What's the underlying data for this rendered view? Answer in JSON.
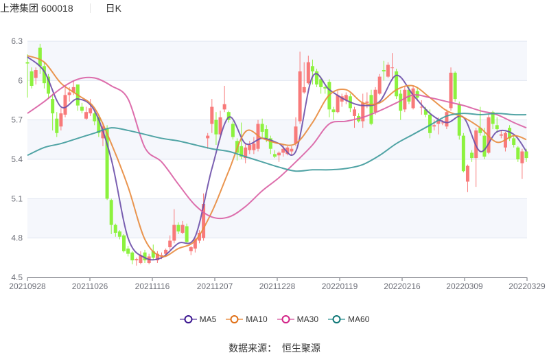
{
  "header": {
    "stock_name": "上港集团",
    "stock_code": "600018",
    "period": "日K"
  },
  "source": {
    "label": "数据来源：",
    "value": "恒生聚源"
  },
  "colors": {
    "up": "#f87a7a",
    "down": "#8cf23e",
    "grid": "#e0e6f1",
    "band": "#f5f7fc",
    "axis": "#6e7079",
    "MA5": "#6b4ea8",
    "MA10": "#e88a3c",
    "MA30": "#d95ea3",
    "MA60": "#3e9a9b",
    "legend_icons": {
      "MA5": "#3b1690",
      "MA10": "#e07018",
      "MA30": "#d22387",
      "MA60": "#0f7777"
    }
  },
  "chart_data": {
    "type": "candlestick",
    "ylim": [
      4.5,
      6.3
    ],
    "y_ticks": [
      "6.3",
      "6",
      "5.7",
      "5.4",
      "5.1",
      "4.8",
      "4.5"
    ],
    "x_ticks": [
      "20210928",
      "20211026",
      "20211116",
      "20211207",
      "20211228",
      "20220119",
      "20220216",
      "20220309",
      "20220329"
    ],
    "grid": true,
    "legend_position": "bottom",
    "legend": [
      "MA5",
      "MA10",
      "MA30",
      "MA60"
    ],
    "candle_order": [
      "open",
      "close",
      "low",
      "high"
    ],
    "candles": [
      [
        6.14,
        6.13,
        5.87,
        6.2
      ],
      [
        6.07,
        5.96,
        5.94,
        6.1
      ],
      [
        6.02,
        6.08,
        5.97,
        6.1
      ],
      [
        6.25,
        6.11,
        6.05,
        6.28
      ],
      [
        6.11,
        5.98,
        5.94,
        6.14
      ],
      [
        6.03,
        5.9,
        5.86,
        6.05
      ],
      [
        5.86,
        5.75,
        5.62,
        5.9
      ],
      [
        5.71,
        5.6,
        5.57,
        5.76
      ],
      [
        5.65,
        5.75,
        5.62,
        5.79
      ],
      [
        5.74,
        5.89,
        5.72,
        5.95
      ],
      [
        5.89,
        5.91,
        5.84,
        5.95
      ],
      [
        5.91,
        5.95,
        5.89,
        6.0
      ],
      [
        5.97,
        5.81,
        5.77,
        5.97
      ],
      [
        5.8,
        5.77,
        5.75,
        5.83
      ],
      [
        5.71,
        5.76,
        5.7,
        5.8
      ],
      [
        5.75,
        5.79,
        5.73,
        5.86
      ],
      [
        5.75,
        5.69,
        5.66,
        5.77
      ],
      [
        5.72,
        5.6,
        5.57,
        5.74
      ],
      [
        5.56,
        5.65,
        5.5,
        5.68
      ],
      [
        5.63,
        5.1,
        5.09,
        5.66
      ],
      [
        5.09,
        4.9,
        4.83,
        5.1
      ],
      [
        4.9,
        4.84,
        4.81,
        4.91
      ],
      [
        4.85,
        4.81,
        4.79,
        4.86
      ],
      [
        4.82,
        4.7,
        4.69,
        4.83
      ],
      [
        4.72,
        4.68,
        4.66,
        4.74
      ],
      [
        4.69,
        4.63,
        4.6,
        4.7
      ],
      [
        4.63,
        4.64,
        4.59,
        4.65
      ],
      [
        4.61,
        4.67,
        4.6,
        4.7
      ],
      [
        4.69,
        4.63,
        4.61,
        4.71
      ],
      [
        4.61,
        4.66,
        4.6,
        4.68
      ],
      [
        4.7,
        4.65,
        4.63,
        4.75
      ],
      [
        4.63,
        4.68,
        4.61,
        4.7
      ],
      [
        4.66,
        4.67,
        4.64,
        4.69
      ],
      [
        4.68,
        4.71,
        4.66,
        4.72
      ],
      [
        4.73,
        4.78,
        4.71,
        4.82
      ],
      [
        4.78,
        4.9,
        4.76,
        5.02
      ],
      [
        4.9,
        4.85,
        4.83,
        4.92
      ],
      [
        4.84,
        4.9,
        4.83,
        4.93
      ],
      [
        4.89,
        4.77,
        4.76,
        4.91
      ],
      [
        4.7,
        4.73,
        4.67,
        4.74
      ],
      [
        4.72,
        4.79,
        4.69,
        4.8
      ],
      [
        4.78,
        4.84,
        4.76,
        4.86
      ],
      [
        4.8,
        5.06,
        4.78,
        5.14
      ],
      [
        5.56,
        5.58,
        5.48,
        5.6
      ],
      [
        5.67,
        5.8,
        5.6,
        5.86
      ],
      [
        5.7,
        5.59,
        5.51,
        5.76
      ],
      [
        5.59,
        5.72,
        5.55,
        5.77
      ],
      [
        5.78,
        5.82,
        5.76,
        5.96
      ],
      [
        5.76,
        5.7,
        5.68,
        5.77
      ],
      [
        5.67,
        5.57,
        5.55,
        5.69
      ],
      [
        5.54,
        5.45,
        5.39,
        5.56
      ],
      [
        5.5,
        5.42,
        5.4,
        5.68
      ],
      [
        5.41,
        5.49,
        5.37,
        5.52
      ],
      [
        5.47,
        5.51,
        5.44,
        5.54
      ],
      [
        5.47,
        5.52,
        5.44,
        5.57
      ],
      [
        5.48,
        5.67,
        5.46,
        5.7
      ],
      [
        5.67,
        5.61,
        5.56,
        5.71
      ],
      [
        5.63,
        5.56,
        5.53,
        5.66
      ],
      [
        5.56,
        5.48,
        5.44,
        5.58
      ],
      [
        5.44,
        5.42,
        5.41,
        5.47
      ],
      [
        5.43,
        5.45,
        5.38,
        5.46
      ],
      [
        5.45,
        5.48,
        5.42,
        5.51
      ],
      [
        5.44,
        5.49,
        5.43,
        5.5
      ],
      [
        5.46,
        5.48,
        5.43,
        5.5
      ],
      [
        5.52,
        5.65,
        5.5,
        5.72
      ],
      [
        5.69,
        6.07,
        5.67,
        6.22
      ],
      [
        5.91,
        5.95,
        5.9,
        6.14
      ],
      [
        5.98,
        6.14,
        5.97,
        6.19
      ],
      [
        6.11,
        6.07,
        5.97,
        6.16
      ],
      [
        6.07,
        5.97,
        5.95,
        6.09
      ],
      [
        6.01,
        5.95,
        5.9,
        6.03
      ],
      [
        5.95,
        5.94,
        5.9,
        5.96
      ],
      [
        5.99,
        5.78,
        5.72,
        6.01
      ],
      [
        5.78,
        5.76,
        5.7,
        5.8
      ],
      [
        5.76,
        5.89,
        5.75,
        5.92
      ],
      [
        5.84,
        5.88,
        5.8,
        5.9
      ],
      [
        5.85,
        5.89,
        5.82,
        5.91
      ],
      [
        5.88,
        5.79,
        5.76,
        5.9
      ],
      [
        5.73,
        5.78,
        5.64,
        5.8
      ],
      [
        5.73,
        5.69,
        5.68,
        5.75
      ],
      [
        5.69,
        5.83,
        5.64,
        5.9
      ],
      [
        5.83,
        5.84,
        5.79,
        5.91
      ],
      [
        5.89,
        5.67,
        5.66,
        5.93
      ],
      [
        5.76,
        5.93,
        5.74,
        5.95
      ],
      [
        5.9,
        6.03,
        5.89,
        6.05
      ],
      [
        6.08,
        6.07,
        6.0,
        6.15
      ],
      [
        6.03,
        6.12,
        6.02,
        6.14
      ],
      [
        6.1,
        6.1,
        6.0,
        6.21
      ],
      [
        6.07,
        5.88,
        5.86,
        6.09
      ],
      [
        5.9,
        5.77,
        5.7,
        5.93
      ],
      [
        5.78,
        5.93,
        5.76,
        5.96
      ],
      [
        5.93,
        5.84,
        5.82,
        5.96
      ],
      [
        5.79,
        5.94,
        5.78,
        5.96
      ],
      [
        5.92,
        5.87,
        5.85,
        5.95
      ],
      [
        5.8,
        5.8,
        5.74,
        5.85
      ],
      [
        5.78,
        5.74,
        5.72,
        5.8
      ],
      [
        5.74,
        5.6,
        5.56,
        5.78
      ],
      [
        5.65,
        5.66,
        5.62,
        5.7
      ],
      [
        5.67,
        5.7,
        5.59,
        5.72
      ],
      [
        5.68,
        5.68,
        5.66,
        5.7
      ],
      [
        5.65,
        5.76,
        5.63,
        5.78
      ],
      [
        5.79,
        6.06,
        5.77,
        6.1
      ],
      [
        6.06,
        5.86,
        5.84,
        6.07
      ],
      [
        5.82,
        5.58,
        5.55,
        5.84
      ],
      [
        5.58,
        5.31,
        5.3,
        5.6
      ],
      [
        5.23,
        5.35,
        5.15,
        5.36
      ],
      [
        5.45,
        5.41,
        5.38,
        5.47
      ],
      [
        5.41,
        5.62,
        5.19,
        5.64
      ],
      [
        5.64,
        5.6,
        5.58,
        5.8
      ],
      [
        5.58,
        5.42,
        5.4,
        5.64
      ],
      [
        5.45,
        5.72,
        5.44,
        5.74
      ],
      [
        5.76,
        5.67,
        5.63,
        5.77
      ],
      [
        5.66,
        5.63,
        5.6,
        5.72
      ],
      [
        5.58,
        5.59,
        5.56,
        5.62
      ],
      [
        5.49,
        5.6,
        5.46,
        5.61
      ],
      [
        5.64,
        5.56,
        5.54,
        5.66
      ],
      [
        5.56,
        5.51,
        5.49,
        5.58
      ],
      [
        5.49,
        5.4,
        5.38,
        5.5
      ],
      [
        5.37,
        5.46,
        5.25,
        5.48
      ],
      [
        5.46,
        5.41,
        5.38,
        5.48
      ]
    ],
    "ma_sample_index": [
      0,
      4,
      8,
      12,
      16,
      20,
      24,
      28,
      32,
      36,
      40,
      44,
      48,
      52,
      56,
      60,
      64,
      68,
      72,
      76,
      80,
      84,
      88,
      92,
      96,
      100,
      104,
      108,
      112,
      116,
      119
    ],
    "series": [
      {
        "name": "MA5",
        "values": [
          6.18,
          6.07,
          5.8,
          5.86,
          5.77,
          5.4,
          4.8,
          4.65,
          4.65,
          4.76,
          4.81,
          5.33,
          5.72,
          5.52,
          5.56,
          5.52,
          5.46,
          6.03,
          5.93,
          5.85,
          5.81,
          5.84,
          6.04,
          5.89,
          5.75,
          5.68,
          5.72,
          5.46,
          5.61,
          5.59,
          5.46
        ]
      },
      {
        "name": "MA10",
        "values": [
          6.19,
          6.14,
          5.98,
          5.89,
          5.79,
          5.52,
          5.19,
          4.79,
          4.66,
          4.72,
          4.78,
          5.0,
          5.31,
          5.61,
          5.56,
          5.52,
          5.52,
          5.68,
          5.89,
          5.93,
          5.83,
          5.83,
          5.93,
          5.96,
          5.87,
          5.77,
          5.72,
          5.64,
          5.53,
          5.58,
          5.55
        ]
      },
      {
        "name": "MA30",
        "values": [
          5.75,
          5.84,
          5.94,
          6.01,
          6.02,
          5.96,
          5.86,
          5.49,
          5.38,
          5.21,
          5.05,
          4.96,
          4.96,
          5.04,
          5.16,
          5.26,
          5.38,
          5.51,
          5.67,
          5.69,
          5.72,
          5.77,
          5.83,
          5.89,
          5.87,
          5.84,
          5.81,
          5.77,
          5.74,
          5.68,
          5.64
        ]
      },
      {
        "name": "MA60",
        "values": [
          5.43,
          5.49,
          5.52,
          5.56,
          5.6,
          5.64,
          5.62,
          5.59,
          5.56,
          5.54,
          5.51,
          5.48,
          5.46,
          5.42,
          5.38,
          5.34,
          5.31,
          5.32,
          5.32,
          5.33,
          5.36,
          5.43,
          5.52,
          5.59,
          5.66,
          5.73,
          5.75,
          5.74,
          5.75,
          5.74,
          5.74
        ]
      }
    ]
  }
}
